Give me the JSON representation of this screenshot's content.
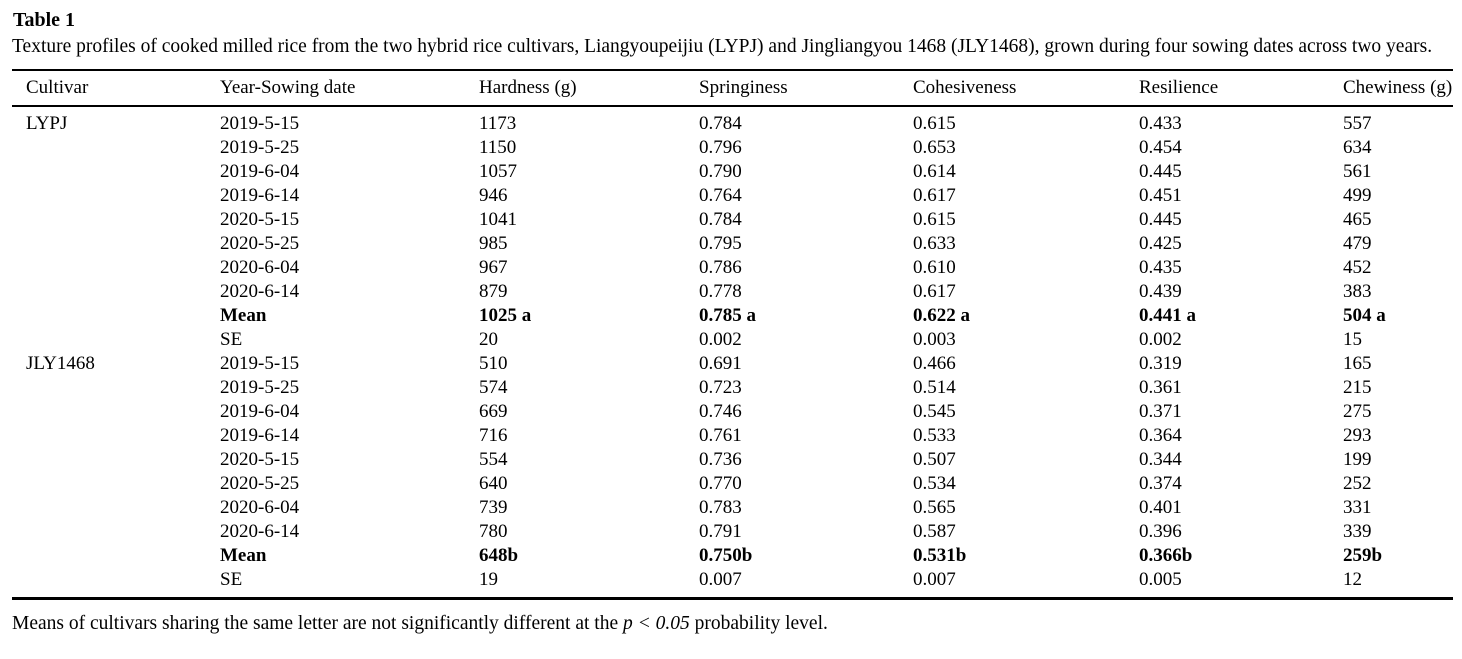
{
  "title": "Table 1",
  "caption": "Texture profiles of cooked milled rice from the two hybrid rice cultivars, Liangyoupeijiu (LYPJ) and Jingliangyou 1468 (JLY1468), grown during four sowing dates across two years.",
  "table": {
    "columns": [
      "Cultivar",
      "Year-Sowing date",
      "Hardness (g)",
      "Springiness",
      "Cohesiveness",
      "Resilience",
      "Chewiness (g)"
    ],
    "rows": [
      {
        "bold": false,
        "cells": [
          "LYPJ",
          "2019-5-15",
          "1173",
          "0.784",
          "0.615",
          "0.433",
          "557"
        ]
      },
      {
        "bold": false,
        "cells": [
          "",
          "2019-5-25",
          "1150",
          "0.796",
          "0.653",
          "0.454",
          "634"
        ]
      },
      {
        "bold": false,
        "cells": [
          "",
          "2019-6-04",
          "1057",
          "0.790",
          "0.614",
          "0.445",
          "561"
        ]
      },
      {
        "bold": false,
        "cells": [
          "",
          "2019-6-14",
          "946",
          "0.764",
          "0.617",
          "0.451",
          "499"
        ]
      },
      {
        "bold": false,
        "cells": [
          "",
          "2020-5-15",
          "1041",
          "0.784",
          "0.615",
          "0.445",
          "465"
        ]
      },
      {
        "bold": false,
        "cells": [
          "",
          "2020-5-25",
          "985",
          "0.795",
          "0.633",
          "0.425",
          "479"
        ]
      },
      {
        "bold": false,
        "cells": [
          "",
          "2020-6-04",
          "967",
          "0.786",
          "0.610",
          "0.435",
          "452"
        ]
      },
      {
        "bold": false,
        "cells": [
          "",
          "2020-6-14",
          "879",
          "0.778",
          "0.617",
          "0.439",
          "383"
        ]
      },
      {
        "bold": true,
        "cells": [
          "",
          "Mean",
          "1025 a",
          "0.785 a",
          "0.622 a",
          "0.441 a",
          "504 a"
        ]
      },
      {
        "bold": false,
        "cells": [
          "",
          "SE",
          "20",
          "0.002",
          "0.003",
          "0.002",
          "15"
        ]
      },
      {
        "bold": false,
        "cells": [
          "JLY1468",
          "2019-5-15",
          "510",
          "0.691",
          "0.466",
          "0.319",
          "165"
        ]
      },
      {
        "bold": false,
        "cells": [
          "",
          "2019-5-25",
          "574",
          "0.723",
          "0.514",
          "0.361",
          "215"
        ]
      },
      {
        "bold": false,
        "cells": [
          "",
          "2019-6-04",
          "669",
          "0.746",
          "0.545",
          "0.371",
          "275"
        ]
      },
      {
        "bold": false,
        "cells": [
          "",
          "2019-6-14",
          "716",
          "0.761",
          "0.533",
          "0.364",
          "293"
        ]
      },
      {
        "bold": false,
        "cells": [
          "",
          "2020-5-15",
          "554",
          "0.736",
          "0.507",
          "0.344",
          "199"
        ]
      },
      {
        "bold": false,
        "cells": [
          "",
          "2020-5-25",
          "640",
          "0.770",
          "0.534",
          "0.374",
          "252"
        ]
      },
      {
        "bold": false,
        "cells": [
          "",
          "2020-6-04",
          "739",
          "0.783",
          "0.565",
          "0.401",
          "331"
        ]
      },
      {
        "bold": false,
        "cells": [
          "",
          "2020-6-14",
          "780",
          "0.791",
          "0.587",
          "0.396",
          "339"
        ]
      },
      {
        "bold": true,
        "cells": [
          "",
          "Mean",
          "648b",
          "0.750b",
          "0.531b",
          "0.366b",
          "259b"
        ]
      },
      {
        "bold": false,
        "cells": [
          "",
          "SE",
          "19",
          "0.007",
          "0.007",
          "0.005",
          "12"
        ]
      }
    ]
  },
  "footnote": {
    "prefix": "Means of cultivars sharing the same letter are not significantly different at the ",
    "italic": "p < 0.05",
    "suffix": " probability level."
  }
}
